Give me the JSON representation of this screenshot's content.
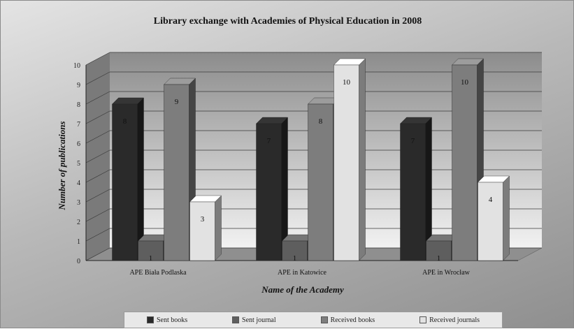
{
  "chart_data": {
    "type": "bar",
    "title": "Library exchange with Academies of Physical Education in 2008",
    "xlabel": "Name of the Academy",
    "ylabel": "Number of publications",
    "categories": [
      "APE Biała Podlaska",
      "APE in Katowice",
      "APE in Wrocław"
    ],
    "series": [
      {
        "name": "Sent books",
        "values": [
          8,
          7,
          7
        ],
        "color": "#2a2a2a"
      },
      {
        "name": "Sent journal",
        "values": [
          1,
          1,
          1
        ],
        "color": "#5e5e5e"
      },
      {
        "name": "Received books",
        "values": [
          9,
          8,
          10
        ],
        "color": "#7d7d7d"
      },
      {
        "name": "Received journals",
        "values": [
          3,
          10,
          4
        ],
        "color": "#e2e2e2"
      }
    ],
    "ylim": [
      0,
      10
    ],
    "yticks": [
      0,
      1,
      2,
      3,
      4,
      5,
      6,
      7,
      8,
      9,
      10
    ],
    "grid": true,
    "legend_position": "bottom",
    "data_labels": true
  }
}
